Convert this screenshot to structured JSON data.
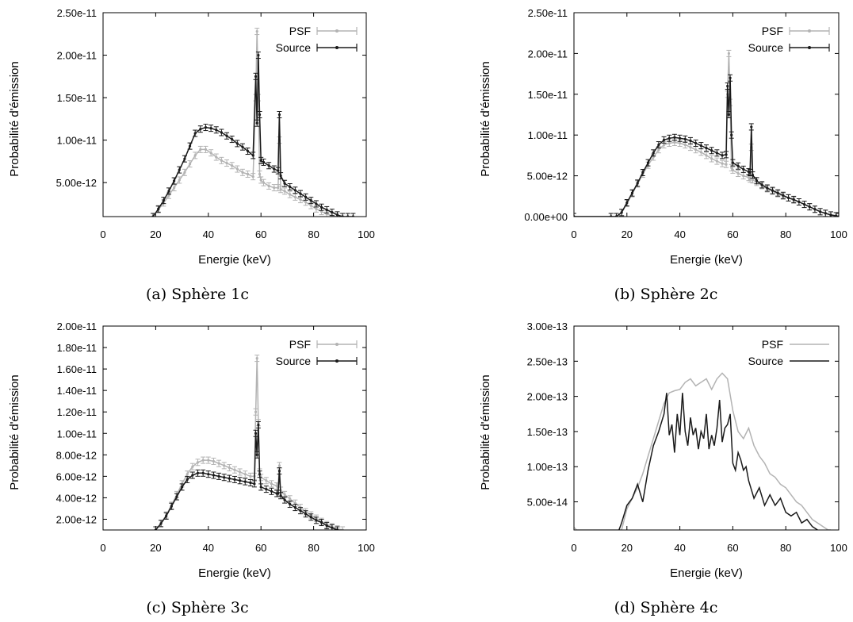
{
  "chart_data": [
    {
      "type": "line",
      "caption": "(a) Sphère 1c",
      "xlabel": "Energie (keV)",
      "ylabel": "Probabilité d'émission",
      "xlim": [
        0,
        100
      ],
      "ylim": [
        1e-12,
        2.5e-11
      ],
      "xticks": [
        "0",
        "20",
        "40",
        "60",
        "80",
        "100"
      ],
      "yticks": [
        {
          "v": 5e-12,
          "label": "5.00e-12"
        },
        {
          "v": 1e-11,
          "label": "1.00e-11"
        },
        {
          "v": 1.5e-11,
          "label": "1.50e-11"
        },
        {
          "v": 2e-11,
          "label": "2.00e-11"
        },
        {
          "v": 2.5e-11,
          "label": "2.50e-11"
        }
      ],
      "legend_position": "top-right",
      "errorbars": true,
      "series": [
        {
          "name": "PSF",
          "color": "#b3b3b3",
          "x": [
            19,
            21,
            23,
            25,
            27,
            29,
            31,
            33,
            35,
            37,
            39,
            41,
            43,
            45,
            47,
            49,
            51,
            53,
            55,
            57,
            58,
            58.5,
            59,
            59.5,
            60,
            61,
            63,
            65,
            66.5,
            67,
            67.5,
            69,
            71,
            73,
            75,
            77,
            79,
            81,
            83,
            85,
            87,
            89,
            91
          ],
          "y": [
            1e-12,
            1.8e-12,
            2.6e-12,
            3.5e-12,
            4.4e-12,
            5.3e-12,
            6.2e-12,
            7.2e-12,
            8.2e-12,
            8.9e-12,
            8.9e-12,
            8.5e-12,
            8e-12,
            7.6e-12,
            7.3e-12,
            7e-12,
            6.6e-12,
            6.2e-12,
            6e-12,
            5.7e-12,
            1.5e-11,
            2.28e-11,
            1.5e-11,
            6e-12,
            5.3e-12,
            5e-12,
            4.6e-12,
            4.4e-12,
            4.4e-12,
            1e-11,
            4.2e-12,
            4e-12,
            3.6e-12,
            3.3e-12,
            3e-12,
            2.7e-12,
            2.3e-12,
            1.9e-12,
            1.6e-12,
            1.3e-12,
            1.1e-12,
            1e-12,
            1e-12
          ]
        },
        {
          "name": "Source",
          "color": "#1a1a1a",
          "x": [
            19,
            21,
            23,
            25,
            27,
            29,
            31,
            33,
            35,
            37,
            39,
            41,
            43,
            45,
            47,
            49,
            51,
            53,
            55,
            57,
            58,
            58.5,
            59,
            59.5,
            60,
            61,
            63,
            65,
            66.5,
            67,
            67.5,
            69,
            71,
            73,
            75,
            77,
            79,
            81,
            83,
            85,
            87,
            89,
            91,
            93,
            95
          ],
          "y": [
            1e-12,
            1.9e-12,
            2.9e-12,
            4e-12,
            5.2e-12,
            6.5e-12,
            7.8e-12,
            9.3e-12,
            1.08e-11,
            1.13e-11,
            1.15e-11,
            1.14e-11,
            1.12e-11,
            1.09e-11,
            1.05e-11,
            1.01e-11,
            9.6e-12,
            9.2e-12,
            8.7e-12,
            8.2e-12,
            1.75e-11,
            1.2e-11,
            2e-11,
            1.3e-11,
            7.6e-12,
            7.4e-12,
            7e-12,
            6.6e-12,
            6.4e-12,
            1.3e-11,
            5.8e-12,
            4.9e-12,
            4.5e-12,
            4.1e-12,
            3.7e-12,
            3.3e-12,
            2.9e-12,
            2.5e-12,
            2.1e-12,
            1.8e-12,
            1.5e-12,
            1.2e-12,
            1e-12,
            1e-12,
            1e-12
          ]
        }
      ]
    },
    {
      "type": "line",
      "caption": "(b) Sphère 2c",
      "xlabel": "Energie (keV)",
      "ylabel": "Probabilité d'émission",
      "xlim": [
        0,
        100
      ],
      "ylim": [
        0,
        2.5e-11
      ],
      "xticks": [
        "0",
        "20",
        "40",
        "60",
        "80",
        "100"
      ],
      "yticks": [
        {
          "v": 0,
          "label": "0.00e+00"
        },
        {
          "v": 5e-12,
          "label": "5.00e-12"
        },
        {
          "v": 1e-11,
          "label": "1.00e-11"
        },
        {
          "v": 1.5e-11,
          "label": "1.50e-11"
        },
        {
          "v": 2e-11,
          "label": "2.00e-11"
        },
        {
          "v": 2.5e-11,
          "label": "2.50e-11"
        }
      ],
      "legend_position": "top-right",
      "errorbars": true,
      "series": [
        {
          "name": "PSF",
          "color": "#b3b3b3",
          "x": [
            0,
            14,
            16,
            18,
            20,
            22,
            24,
            26,
            28,
            30,
            32,
            34,
            36,
            38,
            40,
            42,
            44,
            46,
            48,
            50,
            52,
            54,
            56,
            57.5,
            58,
            58.5,
            59,
            59.5,
            60,
            62,
            64,
            66,
            66.5,
            67,
            67.5,
            69,
            71,
            73,
            75,
            77,
            79,
            81,
            83,
            85,
            87,
            89,
            91,
            93,
            95,
            97,
            99,
            100
          ],
          "y": [
            0,
            0,
            0,
            5e-13,
            1.6e-12,
            2.8e-12,
            4e-12,
            5.2e-12,
            6.3e-12,
            7.3e-12,
            8.2e-12,
            8.8e-12,
            9e-12,
            9.1e-12,
            9e-12,
            8.8e-12,
            8.5e-12,
            8.2e-12,
            7.9e-12,
            7.5e-12,
            7.1e-12,
            6.8e-12,
            6.5e-12,
            6.4e-12,
            1.5e-11,
            2e-11,
            1.4e-11,
            6e-12,
            5.7e-12,
            5.3e-12,
            5e-12,
            4.8e-12,
            4.6e-12,
            8.5e-12,
            4.5e-12,
            4.2e-12,
            3.8e-12,
            3.4e-12,
            3.1e-12,
            2.8e-12,
            2.5e-12,
            2.3e-12,
            2e-12,
            1.8e-12,
            1.5e-12,
            1.2e-12,
            9e-13,
            6e-13,
            4e-13,
            2e-13,
            1e-13,
            0
          ]
        },
        {
          "name": "Source",
          "color": "#1a1a1a",
          "x": [
            0,
            14,
            16,
            18,
            20,
            22,
            24,
            26,
            28,
            30,
            32,
            34,
            36,
            38,
            40,
            42,
            44,
            46,
            48,
            50,
            52,
            54,
            56,
            57.5,
            58,
            58.5,
            59,
            59.5,
            60,
            62,
            64,
            66,
            66.5,
            67,
            67.5,
            69,
            71,
            73,
            75,
            77,
            79,
            81,
            83,
            85,
            87,
            89,
            91,
            93,
            95,
            97,
            99,
            100
          ],
          "y": [
            0,
            0,
            0,
            5e-13,
            1.7e-12,
            2.9e-12,
            4.1e-12,
            5.4e-12,
            6.6e-12,
            7.8e-12,
            8.8e-12,
            9.4e-12,
            9.6e-12,
            9.7e-12,
            9.6e-12,
            9.5e-12,
            9.3e-12,
            9e-12,
            8.7e-12,
            8.4e-12,
            8.1e-12,
            7.8e-12,
            7.5e-12,
            7.6e-12,
            1.6e-11,
            1.25e-11,
            1.7e-11,
            1e-11,
            6.6e-12,
            6.2e-12,
            5.8e-12,
            5.5e-12,
            5.4e-12,
            1.1e-11,
            5.1e-12,
            4.4e-12,
            3.9e-12,
            3.5e-12,
            3.2e-12,
            2.9e-12,
            2.6e-12,
            2.3e-12,
            2.1e-12,
            1.8e-12,
            1.5e-12,
            1.2e-12,
            9e-13,
            6e-13,
            4e-13,
            2e-13,
            1e-13,
            0
          ]
        }
      ]
    },
    {
      "type": "line",
      "caption": "(c) Sphère 3c",
      "xlabel": "Energie (keV)",
      "ylabel": "Probabilité d'émission",
      "xlim": [
        0,
        100
      ],
      "ylim": [
        1e-12,
        2e-11
      ],
      "xticks": [
        "0",
        "20",
        "40",
        "60",
        "80",
        "100"
      ],
      "yticks": [
        {
          "v": 2e-12,
          "label": "2.00e-12"
        },
        {
          "v": 4e-12,
          "label": "4.00e-12"
        },
        {
          "v": 6e-12,
          "label": "6.00e-12"
        },
        {
          "v": 8e-12,
          "label": "8.00e-12"
        },
        {
          "v": 1e-11,
          "label": "1.00e-11"
        },
        {
          "v": 1.2e-11,
          "label": "1.20e-11"
        },
        {
          "v": 1.4e-11,
          "label": "1.40e-11"
        },
        {
          "v": 1.6e-11,
          "label": "1.60e-11"
        },
        {
          "v": 1.8e-11,
          "label": "1.80e-11"
        },
        {
          "v": 2e-11,
          "label": "2.00e-11"
        }
      ],
      "legend_position": "top-right",
      "errorbars": true,
      "series": [
        {
          "name": "PSF",
          "color": "#b3b3b3",
          "x": [
            20,
            22,
            24,
            26,
            28,
            30,
            32,
            34,
            36,
            38,
            40,
            42,
            44,
            46,
            48,
            50,
            52,
            54,
            56,
            57.5,
            58,
            58.5,
            59,
            59.5,
            60,
            62,
            64,
            66,
            66.5,
            67,
            67.5,
            69,
            71,
            73,
            75,
            77,
            79,
            81,
            83,
            85,
            87,
            89,
            91
          ],
          "y": [
            1e-12,
            1.6e-12,
            2.4e-12,
            3.3e-12,
            4.3e-12,
            5.3e-12,
            6.2e-12,
            6.9e-12,
            7.3e-12,
            7.5e-12,
            7.5e-12,
            7.4e-12,
            7.2e-12,
            7e-12,
            6.8e-12,
            6.6e-12,
            6.4e-12,
            6.2e-12,
            6e-12,
            6e-12,
            1.2e-11,
            1.7e-11,
            1.1e-11,
            6.4e-12,
            5.9e-12,
            5.6e-12,
            5.3e-12,
            5.1e-12,
            5e-12,
            7e-12,
            4.7e-12,
            4.3e-12,
            3.9e-12,
            3.5e-12,
            3.1e-12,
            2.7e-12,
            2.4e-12,
            2.1e-12,
            1.8e-12,
            1.5e-12,
            1.3e-12,
            1.1e-12,
            1e-12
          ]
        },
        {
          "name": "Source",
          "color": "#1a1a1a",
          "x": [
            20,
            22,
            24,
            26,
            28,
            30,
            32,
            34,
            36,
            38,
            40,
            42,
            44,
            46,
            48,
            50,
            52,
            54,
            56,
            57.5,
            58,
            58.5,
            59,
            59.5,
            60,
            62,
            64,
            66,
            66.5,
            67,
            67.5,
            69,
            71,
            73,
            75,
            77,
            79,
            81,
            83,
            85,
            87,
            89
          ],
          "y": [
            1e-12,
            1.6e-12,
            2.3e-12,
            3.2e-12,
            4.1e-12,
            5e-12,
            5.7e-12,
            6.1e-12,
            6.3e-12,
            6.3e-12,
            6.2e-12,
            6.1e-12,
            6e-12,
            5.9e-12,
            5.8e-12,
            5.7e-12,
            5.6e-12,
            5.5e-12,
            5.4e-12,
            5.3e-12,
            1e-11,
            8e-12,
            1.08e-11,
            6.2e-12,
            5e-12,
            4.8e-12,
            4.6e-12,
            4.4e-12,
            4.4e-12,
            6.5e-12,
            4.2e-12,
            3.8e-12,
            3.4e-12,
            3.1e-12,
            2.8e-12,
            2.5e-12,
            2.2e-12,
            1.9e-12,
            1.7e-12,
            1.4e-12,
            1.2e-12,
            1e-12
          ]
        }
      ]
    },
    {
      "type": "line",
      "caption": "(d) Sphère 4c",
      "xlabel": "Energie (keV)",
      "ylabel": "Probabilité d'émission",
      "xlim": [
        0,
        100
      ],
      "ylim": [
        1e-14,
        3e-13
      ],
      "xticks": [
        "0",
        "20",
        "40",
        "60",
        "80",
        "100"
      ],
      "yticks": [
        {
          "v": 5e-14,
          "label": "5.00e-14"
        },
        {
          "v": 1e-13,
          "label": "1.00e-13"
        },
        {
          "v": 1.5e-13,
          "label": "1.50e-13"
        },
        {
          "v": 2e-13,
          "label": "2.00e-13"
        },
        {
          "v": 2.5e-13,
          "label": "2.50e-13"
        },
        {
          "v": 3e-13,
          "label": "3.00e-13"
        }
      ],
      "legend_position": "top-right",
      "errorbars": false,
      "series": [
        {
          "name": "PSF",
          "color": "#b3b3b3",
          "x": [
            0,
            1,
            18,
            20,
            22,
            24,
            26,
            28,
            30,
            32,
            34,
            36,
            38,
            40,
            42,
            44,
            46,
            48,
            50,
            52,
            54,
            56,
            58,
            60,
            62,
            64,
            66,
            68,
            70,
            72,
            74,
            76,
            78,
            80,
            82,
            84,
            86,
            88,
            90,
            92,
            94,
            96,
            97
          ],
          "y": [
            1.4e-14,
            1e-14,
            1e-14,
            4e-14,
            5.5e-14,
            7e-14,
            9e-14,
            1.15e-13,
            1.4e-13,
            1.65e-13,
            1.9e-13,
            2.05e-13,
            2.08e-13,
            2.1e-13,
            2.2e-13,
            2.25e-13,
            2.15e-13,
            2.2e-13,
            2.25e-13,
            2.1e-13,
            2.25e-13,
            2.33e-13,
            2.25e-13,
            1.8e-13,
            1.5e-13,
            1.4e-13,
            1.55e-13,
            1.3e-13,
            1.15e-13,
            1.05e-13,
            9e-14,
            8.5e-14,
            7.5e-14,
            7e-14,
            6e-14,
            5e-14,
            4.5e-14,
            3.5e-14,
            2.5e-14,
            2e-14,
            1.5e-14,
            1e-14,
            1e-14
          ]
        },
        {
          "name": "Source",
          "color": "#1a1a1a",
          "x": [
            17,
            18,
            20,
            22,
            24,
            26,
            28,
            30,
            32,
            34,
            35,
            36,
            37,
            38,
            39,
            40,
            41,
            42,
            43,
            44,
            45,
            46,
            47,
            48,
            49,
            50,
            51,
            52,
            53,
            54,
            55,
            56,
            57,
            58,
            59,
            60,
            61,
            62,
            63,
            64,
            65,
            66,
            68,
            70,
            72,
            74,
            76,
            78,
            80,
            82,
            84,
            86,
            88,
            90,
            92
          ],
          "y": [
            1e-14,
            2e-14,
            4.5e-14,
            5.5e-14,
            7.5e-14,
            5e-14,
            9.5e-14,
            1.3e-13,
            1.5e-13,
            1.75e-13,
            2.05e-13,
            1.45e-13,
            1.6e-13,
            1.2e-13,
            1.75e-13,
            1.45e-13,
            2.05e-13,
            1.5e-13,
            1.3e-13,
            1.7e-13,
            1.45e-13,
            1.55e-13,
            1.25e-13,
            1.5e-13,
            1.4e-13,
            1.75e-13,
            1.25e-13,
            1.45e-13,
            1.3e-13,
            1.55e-13,
            1.95e-13,
            1.35e-13,
            1.55e-13,
            1.6e-13,
            1.75e-13,
            1.05e-13,
            9.5e-14,
            1.2e-13,
            1.1e-13,
            9.5e-14,
            1e-13,
            8e-14,
            5.5e-14,
            7e-14,
            4.5e-14,
            6e-14,
            4.5e-14,
            5.5e-14,
            3.5e-14,
            3e-14,
            3.5e-14,
            2e-14,
            2.5e-14,
            1.5e-14,
            1e-14
          ]
        }
      ]
    }
  ]
}
